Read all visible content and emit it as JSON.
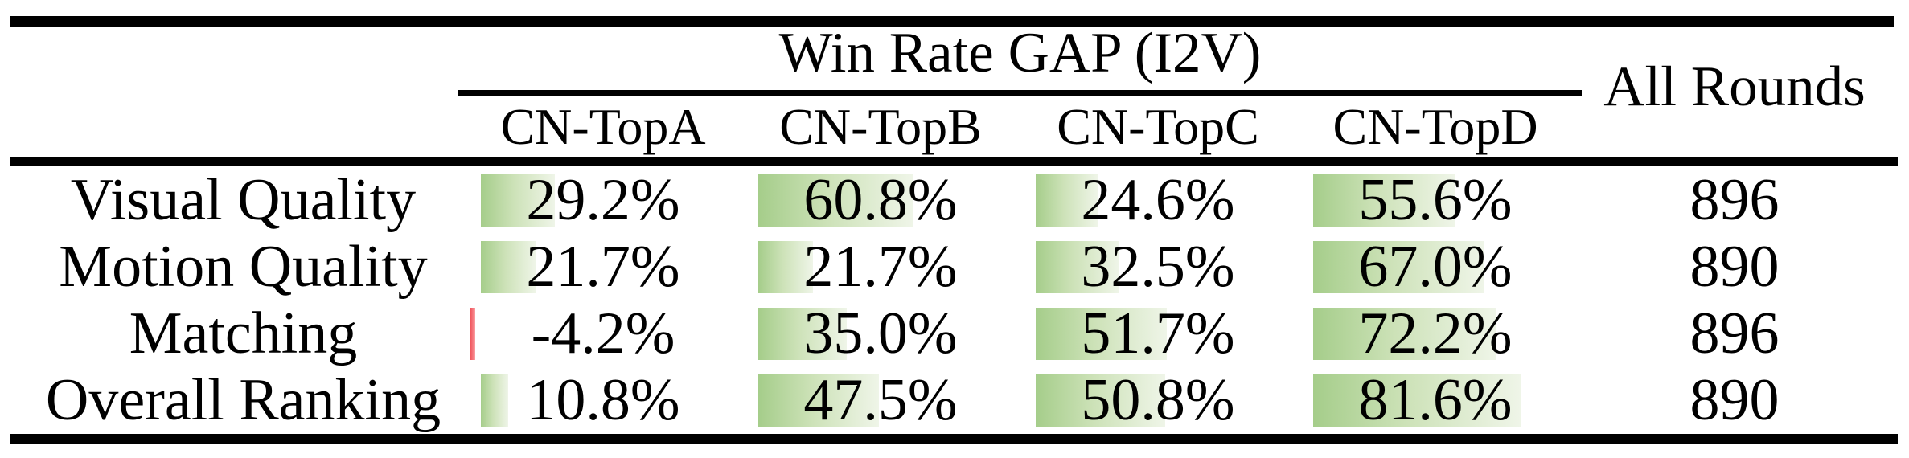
{
  "table": {
    "title": "Win Rate GAP (I2V)",
    "all_rounds_header": "All Rounds",
    "column_headers": [
      "CN-TopA",
      "CN-TopB",
      "CN-TopC",
      "CN-TopD"
    ],
    "rows": [
      {
        "label": "Visual Quality",
        "cells": [
          {
            "text": "29.2%",
            "value": 29.2
          },
          {
            "text": "60.8%",
            "value": 60.8
          },
          {
            "text": "24.6%",
            "value": 24.6
          },
          {
            "text": "55.6%",
            "value": 55.6
          }
        ],
        "all_rounds": "896"
      },
      {
        "label": "Motion Quality",
        "cells": [
          {
            "text": "21.7%",
            "value": 21.7
          },
          {
            "text": "21.7%",
            "value": 21.7
          },
          {
            "text": "32.5%",
            "value": 32.5
          },
          {
            "text": "67.0%",
            "value": 67.0
          }
        ],
        "all_rounds": "890"
      },
      {
        "label": "Matching",
        "cells": [
          {
            "text": "-4.2%",
            "value": -4.2
          },
          {
            "text": "35.0%",
            "value": 35.0
          },
          {
            "text": "51.7%",
            "value": 51.7
          },
          {
            "text": "72.2%",
            "value": 72.2
          }
        ],
        "all_rounds": "896"
      },
      {
        "label": "Overall Ranking",
        "cells": [
          {
            "text": "10.8%",
            "value": 10.8
          },
          {
            "text": "47.5%",
            "value": 47.5
          },
          {
            "text": "50.8%",
            "value": 50.8
          },
          {
            "text": "81.6%",
            "value": 81.6
          }
        ],
        "all_rounds": "890"
      }
    ],
    "colors": {
      "positive_bar_start": "#a5cd8a",
      "positive_bar_mid": "#cde2b8",
      "positive_bar_end": "#eff5e8",
      "negative_bar_start": "#f0545b",
      "negative_bar_end": "#fa9da1",
      "rule": "#000000",
      "text": "#000000"
    }
  }
}
